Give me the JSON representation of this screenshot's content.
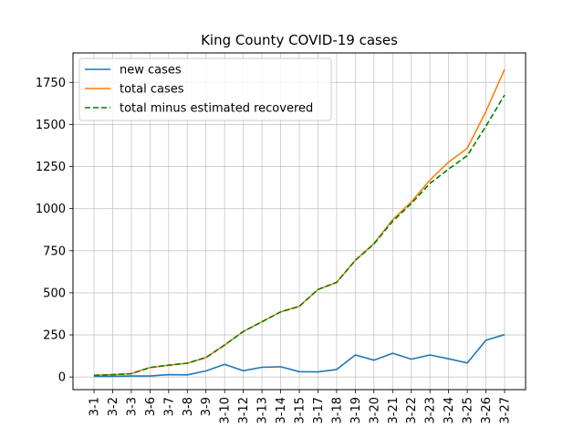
{
  "chart_data": {
    "type": "line",
    "title": "King County COVID-19 cases",
    "xlabel": "",
    "ylabel": "",
    "categories": [
      "3-1",
      "3-2",
      "3-3",
      "3-6",
      "3-7",
      "3-8",
      "3-9",
      "3-10",
      "3-12",
      "3-13",
      "3-14",
      "3-15",
      "3-17",
      "3-18",
      "3-19",
      "3-20",
      "3-21",
      "3-22",
      "3-23",
      "3-24",
      "3-25",
      "3-26",
      "3-27"
    ],
    "ylim": [
      -75,
      1925
    ],
    "yticks": [
      0,
      250,
      500,
      750,
      1000,
      1250,
      1500,
      1750
    ],
    "grid": true,
    "legend_position": "upper-left",
    "series": [
      {
        "name": "new cases",
        "color": "#1f77b4",
        "style": "solid",
        "values": [
          4,
          4,
          6,
          6,
          14,
          13,
          36,
          75,
          37,
          58,
          61,
          32,
          30,
          45,
          131,
          100,
          141,
          106,
          131,
          108,
          83,
          218,
          252
        ]
      },
      {
        "name": "total cases",
        "color": "#ff7f0e",
        "style": "solid",
        "values": [
          10,
          14,
          20,
          56,
          70,
          82,
          116,
          190,
          270,
          328,
          387,
          420,
          520,
          562,
          693,
          793,
          934,
          1040,
          1170,
          1277,
          1359,
          1577,
          1828
        ]
      },
      {
        "name": "total minus estimated recovered",
        "color": "#008000",
        "style": "dashed",
        "values": [
          10,
          14,
          20,
          56,
          70,
          82,
          116,
          190,
          270,
          328,
          387,
          420,
          520,
          562,
          693,
          790,
          925,
          1030,
          1150,
          1235,
          1315,
          1490,
          1675
        ]
      }
    ]
  }
}
